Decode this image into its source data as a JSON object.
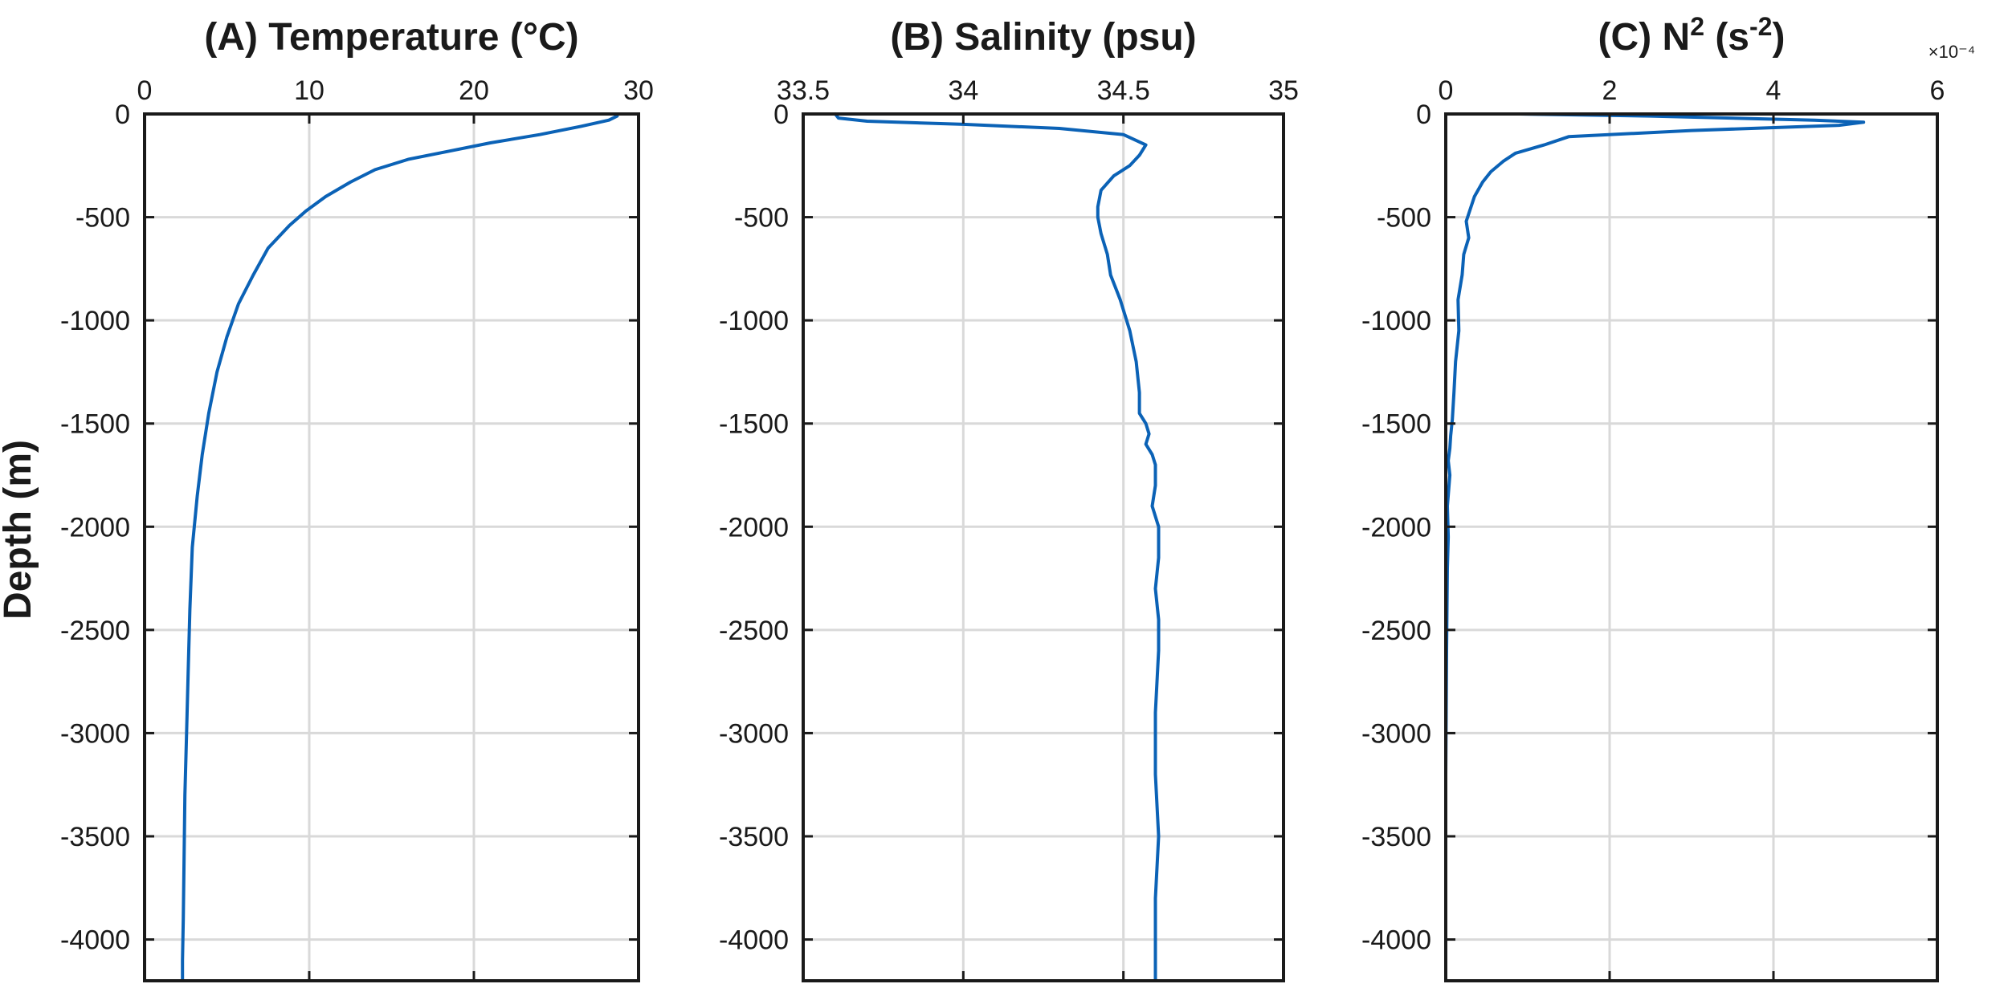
{
  "figure": {
    "ylabel": "Depth (m)",
    "line_color": "#0b62b6"
  },
  "chart_data": [
    {
      "type": "line",
      "title": "(A) Temperature (°C)",
      "xlabel": "",
      "ylabel": "Depth (m)",
      "xlim": [
        0,
        30
      ],
      "ylim": [
        -4200,
        0
      ],
      "x_ticks": [
        "0",
        "10",
        "20",
        "30"
      ],
      "y_ticks": [
        "0",
        "-500",
        "-1000",
        "-1500",
        "-2000",
        "-2500",
        "-3000",
        "-3500",
        "-4000"
      ],
      "grid": true,
      "x_axis_position": "top",
      "series": [
        {
          "x": [
            28.7,
            28.2,
            26.5,
            24.0,
            21.0,
            18.5,
            16.0,
            14.0,
            12.5,
            11.0,
            9.8,
            8.8,
            7.5,
            6.6,
            5.7,
            5.0,
            4.4,
            3.9,
            3.5,
            3.2,
            2.9,
            2.75,
            2.65,
            2.55,
            2.45,
            2.4,
            2.35,
            2.3,
            2.3
          ],
          "y": [
            -10,
            -30,
            -60,
            -100,
            -140,
            -180,
            -220,
            -270,
            -330,
            -400,
            -470,
            -540,
            -650,
            -780,
            -920,
            -1080,
            -1250,
            -1450,
            -1650,
            -1850,
            -2100,
            -2400,
            -2700,
            -3000,
            -3300,
            -3600,
            -3900,
            -4100,
            -4200
          ]
        }
      ]
    },
    {
      "type": "line",
      "title": "(B) Salinity (psu)",
      "xlabel": "",
      "ylabel": "",
      "xlim": [
        33.5,
        35
      ],
      "ylim": [
        -4200,
        0
      ],
      "x_ticks": [
        "33.5",
        "34",
        "34.5",
        "35"
      ],
      "y_ticks": [
        "0",
        "-500",
        "-1000",
        "-1500",
        "-2000",
        "-2500",
        "-3000",
        "-3500",
        "-4000"
      ],
      "grid": true,
      "x_axis_position": "top",
      "series": [
        {
          "x": [
            33.6,
            33.61,
            33.7,
            34.0,
            34.3,
            34.5,
            34.57,
            34.55,
            34.52,
            34.47,
            34.43,
            34.42,
            34.42,
            34.43,
            34.45,
            34.46,
            34.49,
            34.52,
            34.54,
            34.55,
            34.55,
            34.57,
            34.58,
            34.57,
            34.59,
            34.6,
            34.6,
            34.59,
            34.61,
            34.61,
            34.6,
            34.61,
            34.61,
            34.6,
            34.6,
            34.61,
            34.6,
            34.6,
            34.6
          ],
          "y": [
            0,
            -20,
            -35,
            -50,
            -70,
            -100,
            -150,
            -200,
            -250,
            -300,
            -370,
            -450,
            -500,
            -580,
            -680,
            -780,
            -900,
            -1050,
            -1200,
            -1350,
            -1450,
            -1500,
            -1550,
            -1600,
            -1650,
            -1700,
            -1800,
            -1900,
            -2000,
            -2150,
            -2300,
            -2450,
            -2600,
            -2900,
            -3200,
            -3500,
            -3800,
            -4050,
            -4200
          ]
        }
      ]
    },
    {
      "type": "line",
      "title": "(C) N2 (s-2)",
      "xlabel": "",
      "ylabel": "",
      "xlim": [
        0,
        6
      ],
      "ylim": [
        -4200,
        0
      ],
      "x_ticks": [
        "0",
        "2",
        "4",
        "6"
      ],
      "y_ticks": [
        "0",
        "-500",
        "-1000",
        "-1500",
        "-2000",
        "-2500",
        "-3000",
        "-3500",
        "-4000"
      ],
      "x_exponent": "×10⁻⁴",
      "grid": true,
      "x_axis_position": "top",
      "series": [
        {
          "x": [
            0.9,
            2.5,
            4.5,
            5.1,
            4.8,
            3.0,
            1.5,
            1.2,
            0.85,
            0.7,
            0.55,
            0.45,
            0.35,
            0.3,
            0.25,
            0.28,
            0.22,
            0.2,
            0.15,
            0.16,
            0.12,
            0.1,
            0.08,
            0.06,
            0.05,
            0.03,
            0.05,
            0.02,
            0.03,
            0.02,
            0.01,
            0.0,
            0.0
          ],
          "y": [
            0,
            -10,
            -30,
            -40,
            -55,
            -80,
            -110,
            -150,
            -190,
            -230,
            -280,
            -330,
            -400,
            -460,
            -520,
            -600,
            -680,
            -780,
            -900,
            -1050,
            -1200,
            -1350,
            -1480,
            -1560,
            -1620,
            -1680,
            -1750,
            -1900,
            -2050,
            -2200,
            -2600,
            -3200,
            -4200
          ]
        }
      ]
    }
  ]
}
